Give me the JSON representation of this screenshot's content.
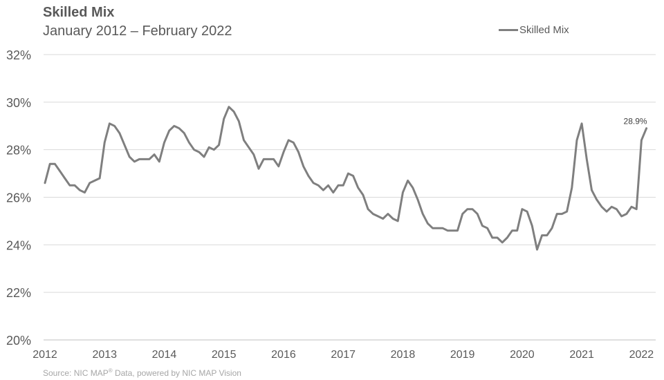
{
  "chart_data": {
    "type": "line",
    "title": "Skilled  Mix",
    "subtitle": "January  2012 – February  2022",
    "xlabel": "",
    "ylabel": "",
    "y_unit": "%",
    "ylim": [
      20,
      32
    ],
    "yticks": [
      "20%",
      "22%",
      "24%",
      "26%",
      "28%",
      "30%",
      "32%"
    ],
    "xlim": [
      2012,
      2022.1
    ],
    "xticks": [
      "2012",
      "2013",
      "2014",
      "2015",
      "2016",
      "2017",
      "2018",
      "2019",
      "2020",
      "2021",
      "2022"
    ],
    "grid": "horizontal",
    "legend_position": "top-right",
    "series": [
      {
        "name": "Skilled Mix",
        "color": "#7f7f7f",
        "x": [
          "2012-01",
          "2012-02",
          "2012-03",
          "2012-04",
          "2012-05",
          "2012-06",
          "2012-07",
          "2012-08",
          "2012-09",
          "2012-10",
          "2012-11",
          "2012-12",
          "2013-01",
          "2013-02",
          "2013-03",
          "2013-04",
          "2013-05",
          "2013-06",
          "2013-07",
          "2013-08",
          "2013-09",
          "2013-10",
          "2013-11",
          "2013-12",
          "2014-01",
          "2014-02",
          "2014-03",
          "2014-04",
          "2014-05",
          "2014-06",
          "2014-07",
          "2014-08",
          "2014-09",
          "2014-10",
          "2014-11",
          "2014-12",
          "2015-01",
          "2015-02",
          "2015-03",
          "2015-04",
          "2015-05",
          "2015-06",
          "2015-07",
          "2015-08",
          "2015-09",
          "2015-10",
          "2015-11",
          "2015-12",
          "2016-01",
          "2016-02",
          "2016-03",
          "2016-04",
          "2016-05",
          "2016-06",
          "2016-07",
          "2016-08",
          "2016-09",
          "2016-10",
          "2016-11",
          "2016-12",
          "2017-01",
          "2017-02",
          "2017-03",
          "2017-04",
          "2017-05",
          "2017-06",
          "2017-07",
          "2017-08",
          "2017-09",
          "2017-10",
          "2017-11",
          "2017-12",
          "2018-01",
          "2018-02",
          "2018-03",
          "2018-04",
          "2018-05",
          "2018-06",
          "2018-07",
          "2018-08",
          "2018-09",
          "2018-10",
          "2018-11",
          "2018-12",
          "2019-01",
          "2019-02",
          "2019-03",
          "2019-04",
          "2019-05",
          "2019-06",
          "2019-07",
          "2019-08",
          "2019-09",
          "2019-10",
          "2019-11",
          "2019-12",
          "2020-01",
          "2020-02",
          "2020-03",
          "2020-04",
          "2020-05",
          "2020-06",
          "2020-07",
          "2020-08",
          "2020-09",
          "2020-10",
          "2020-11",
          "2020-12",
          "2021-01",
          "2021-02",
          "2021-03",
          "2021-04",
          "2021-05",
          "2021-06",
          "2021-07",
          "2021-08",
          "2021-09",
          "2021-10",
          "2021-11",
          "2021-12",
          "2022-01",
          "2022-02"
        ],
        "values": [
          26.6,
          27.4,
          27.4,
          27.1,
          26.8,
          26.5,
          26.5,
          26.3,
          26.2,
          26.6,
          26.7,
          26.8,
          28.3,
          29.1,
          29.0,
          28.7,
          28.2,
          27.7,
          27.5,
          27.6,
          27.6,
          27.6,
          27.8,
          27.5,
          28.3,
          28.8,
          29.0,
          28.9,
          28.7,
          28.3,
          28.0,
          27.9,
          27.7,
          28.1,
          28.0,
          28.2,
          29.3,
          29.8,
          29.6,
          29.2,
          28.4,
          28.1,
          27.8,
          27.2,
          27.6,
          27.6,
          27.6,
          27.3,
          27.9,
          28.4,
          28.3,
          27.9,
          27.3,
          26.9,
          26.6,
          26.5,
          26.3,
          26.5,
          26.2,
          26.5,
          26.5,
          27.0,
          26.9,
          26.4,
          26.1,
          25.5,
          25.3,
          25.2,
          25.1,
          25.3,
          25.1,
          25.0,
          26.2,
          26.7,
          26.4,
          25.9,
          25.3,
          24.9,
          24.7,
          24.7,
          24.7,
          24.6,
          24.6,
          24.6,
          25.3,
          25.5,
          25.5,
          25.3,
          24.8,
          24.7,
          24.3,
          24.3,
          24.1,
          24.3,
          24.6,
          24.6,
          25.5,
          25.4,
          24.8,
          23.8,
          24.4,
          24.4,
          24.7,
          25.3,
          25.3,
          25.4,
          26.4,
          28.4,
          29.1,
          27.6,
          26.3,
          25.9,
          25.6,
          25.4,
          25.6,
          25.5,
          25.2,
          25.3,
          25.6,
          25.5,
          28.4,
          28.9
        ]
      }
    ],
    "end_label": "28.9%"
  },
  "source": {
    "prefix": "Source: NIC MAP",
    "mark": "®",
    "suffix": " Data, powered  by NIC  MAP Vision"
  }
}
